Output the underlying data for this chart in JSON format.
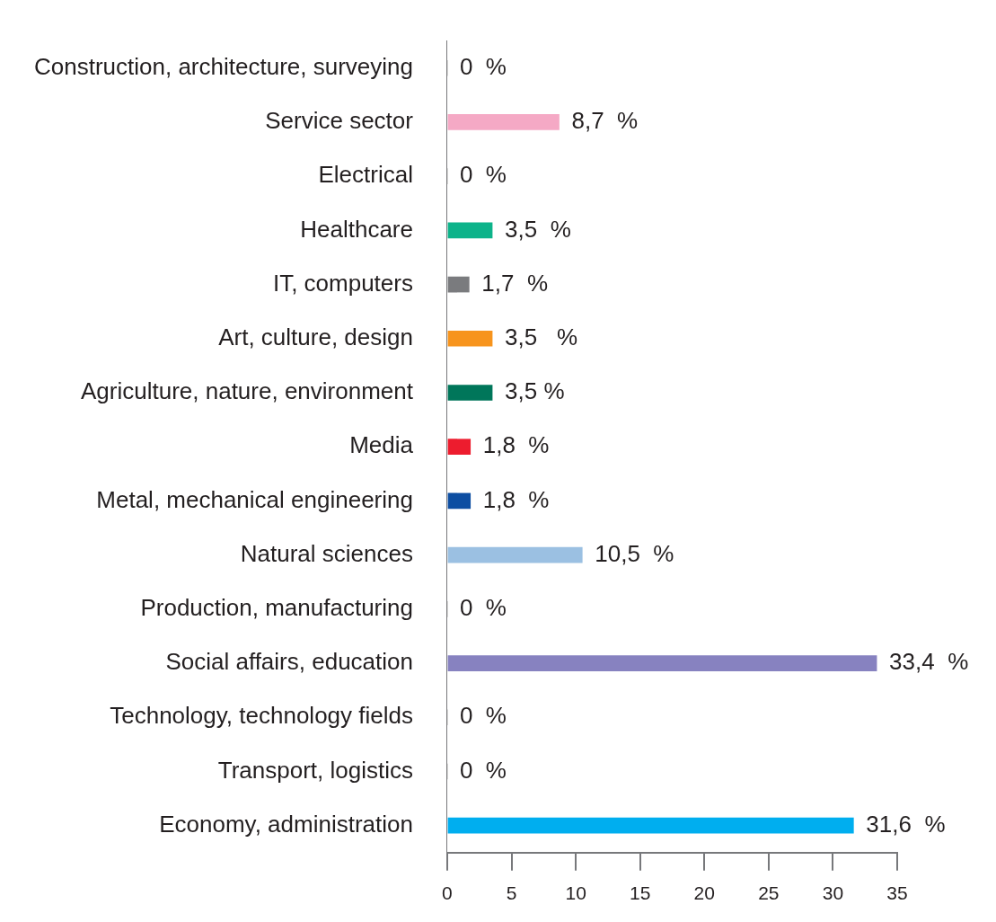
{
  "chart_data": {
    "type": "bar",
    "orientation": "horizontal",
    "categories": [
      "Construction, architecture, surveying",
      "Service sector",
      "Electrical",
      "Healthcare",
      "IT, computers",
      "Art, culture, design",
      "Agriculture, nature, environment",
      "Media",
      "Metal, mechanical engineering",
      "Natural sciences",
      "Production, manufacturing",
      "Social affairs, education",
      "Technology, technology fields",
      "Transport, logistics",
      "Economy, administration"
    ],
    "values": [
      0,
      8.7,
      0,
      3.5,
      1.7,
      3.5,
      3.5,
      1.8,
      1.8,
      10.5,
      0,
      33.4,
      0,
      0,
      31.6
    ],
    "colors": [
      "#808080",
      "#f5a9c5",
      "#808080",
      "#0db38a",
      "#7a7b7e",
      "#f7941d",
      "#00765a",
      "#ed1c2e",
      "#0d4ea2",
      "#9bc0e2",
      "#808080",
      "#8782c0",
      "#808080",
      "#808080",
      "#00aeef"
    ],
    "value_labels": [
      "0  %",
      "8,7  %",
      "0  %",
      "3,5  %",
      "1,7  %",
      "3,5   %",
      "3,5 %",
      "1,8  %",
      "1,8  %",
      "10,5  %",
      "0  %",
      "33,4  %",
      "0  %",
      "0  %",
      "31,6  %"
    ],
    "xlim": [
      0,
      35
    ],
    "xticks": [
      0,
      5,
      10,
      15,
      20,
      25,
      30,
      35
    ]
  }
}
